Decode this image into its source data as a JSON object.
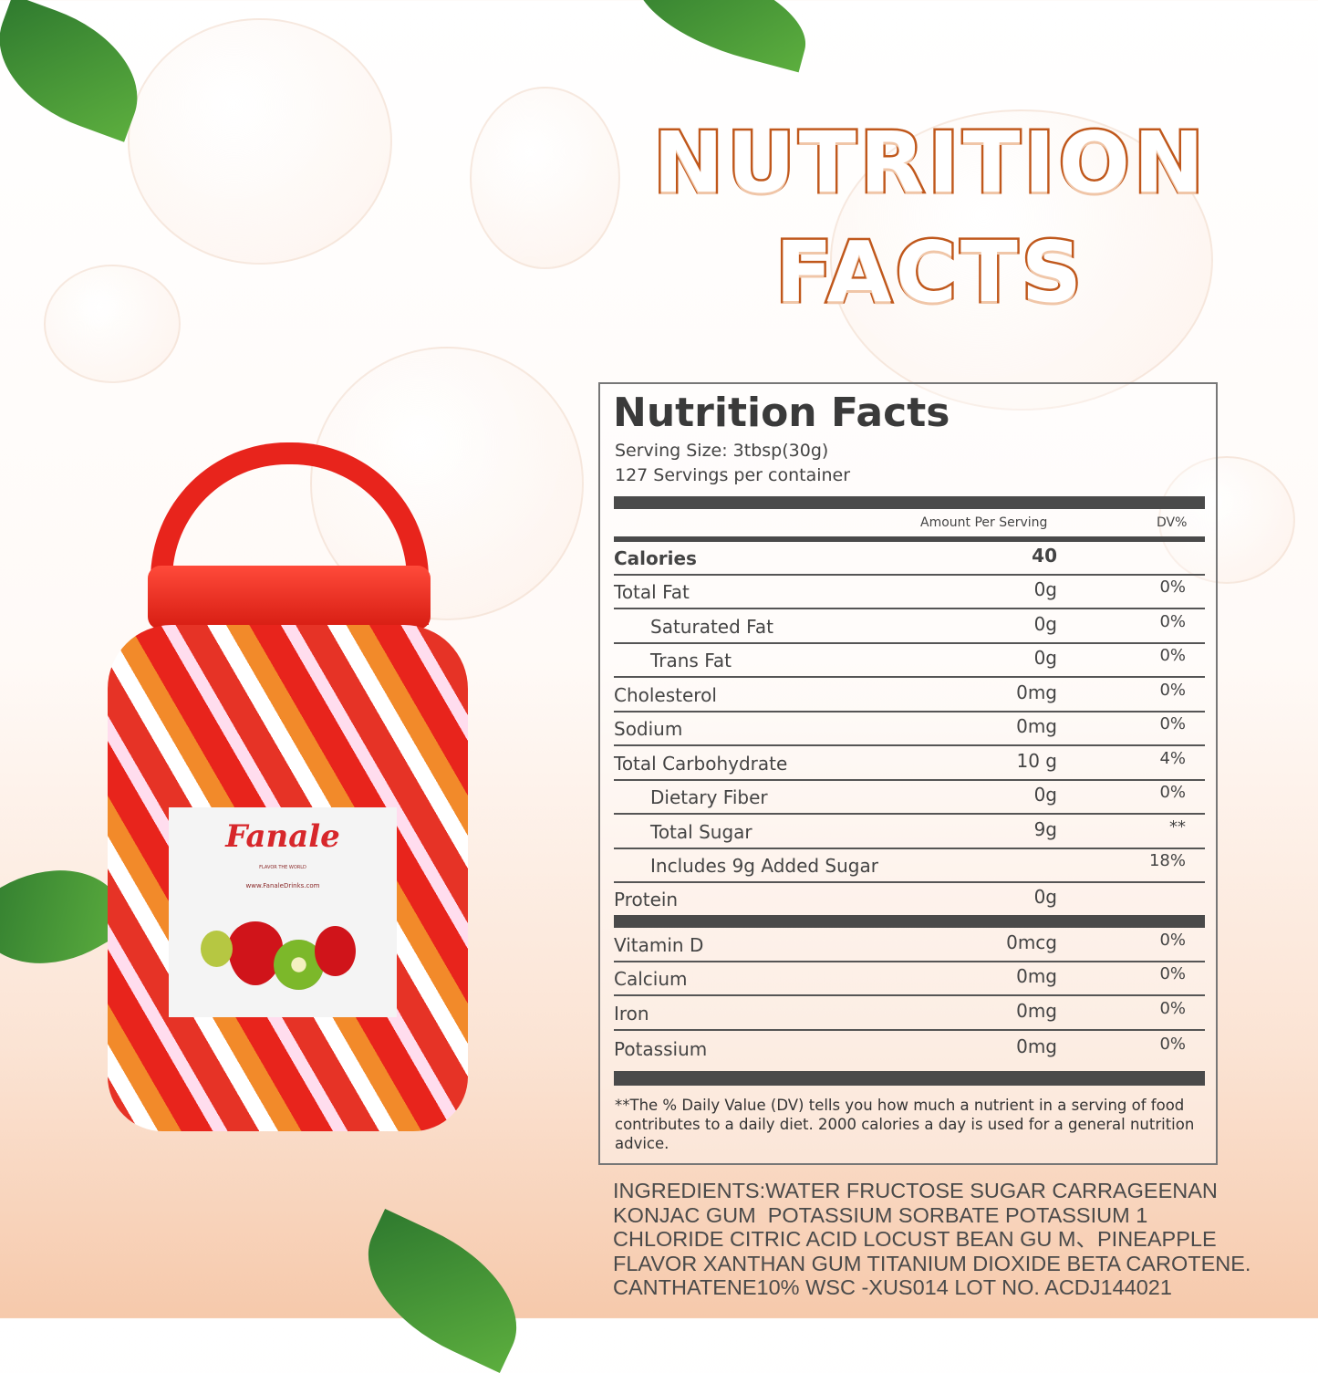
{
  "headline": {
    "line1": "NUTRITION",
    "line2": "FACTS"
  },
  "brand": {
    "name": "Fanale",
    "tagline": "FLAVOR THE WORLD",
    "website": "www.FanaleDrinks.com",
    "colors": {
      "jar": "#e8241c",
      "title_stroke": "#c0581c"
    }
  },
  "panel": {
    "title": "Nutrition Facts",
    "serving_size": "Serving Size:  3tbsp(30g)",
    "servings": "127 Servings per container",
    "header_amount": "Amount Per Serving",
    "header_dv": "DV%",
    "rows": [
      {
        "name": "Calories",
        "amount": "40",
        "dv": "",
        "bold": true
      },
      {
        "name": "Total Fat",
        "amount": "0g",
        "dv": "0%"
      },
      {
        "name": "Saturated Fat",
        "amount": "0g",
        "dv": "0%",
        "indent": true
      },
      {
        "name": "Trans Fat",
        "amount": "0g",
        "dv": "0%",
        "indent": true
      },
      {
        "name": "Cholesterol",
        "amount": "0mg",
        "dv": "0%"
      },
      {
        "name": "Sodium",
        "amount": "0mg",
        "dv": "0%"
      },
      {
        "name": "Total Carbohydrate",
        "amount": "10 g",
        "dv": "4%"
      },
      {
        "name": "Dietary Fiber",
        "amount": "0g",
        "dv": "0%",
        "indent": true
      },
      {
        "name": "Total Sugar",
        "amount": "9g",
        "dv": "**",
        "indent": true
      },
      {
        "name": "Includes 9g Added Sugar",
        "amount": "",
        "dv": "18%",
        "indent": true
      },
      {
        "name": "Protein",
        "amount": "0g",
        "dv": "",
        "thick": true
      },
      {
        "name": "Vitamin D",
        "amount": "0mcg",
        "dv": "0%"
      },
      {
        "name": "Calcium",
        "amount": "0mg",
        "dv": "0%"
      },
      {
        "name": "Iron",
        "amount": "0mg",
        "dv": "0%"
      },
      {
        "name": "Potassium",
        "amount": "0mg",
        "dv": "0%",
        "last": true
      }
    ],
    "footnote": "**The % Daily Value (DV) tells you how much a nutrient in a serving of food contributes to a daily diet. 2000 calories a  day is used for a general nutrition advice."
  },
  "ingredients": "INGREDIENTS:WATER FRUCTOSE SUGAR CARRAGEENAN\nKONJAC GUM  POTASSIUM SORBATE POTASSIUM 1\nCHLORIDE CITRIC ACID LOCUST BEAN GU M、PINEAPPLE\nFLAVOR XANTHAN GUM TITANIUM DIOXIDE BETA CAROTENE.\nCANTHATENE10% WSC -XUS014 LOT NO. ACDJ144021"
}
